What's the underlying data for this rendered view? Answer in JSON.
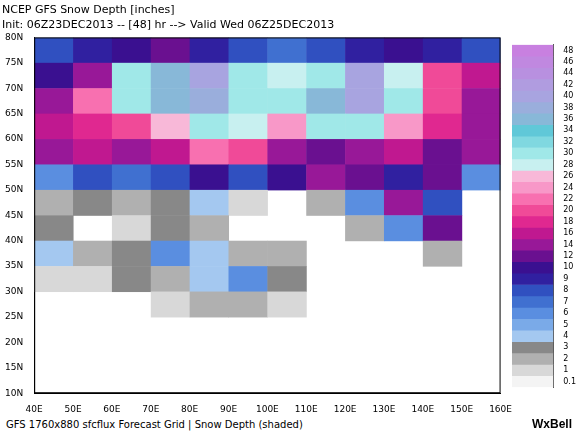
{
  "chart_data": {
    "type": "heatmap",
    "title": "NCEP GFS Snow Depth [inches]",
    "subtitle": "Init: 06Z23DEC2013 -- [48] hr --> Valid Wed 06Z25DEC2013",
    "annotations": [
      "GFS 1760x880 sfcflux Forecast Grid | Snow Depth (shaded)",
      "WxBell"
    ],
    "x": [
      45,
      55,
      65,
      75,
      85,
      95,
      105,
      115,
      125,
      135,
      145,
      155
    ],
    "y": [
      77.5,
      72.5,
      67.5,
      62.5,
      57.5,
      52.5,
      47.5,
      42.5,
      37.5,
      32.5,
      27.5,
      22.5,
      17.5,
      12.5
    ],
    "cells": [
      [
        8,
        9,
        10,
        12,
        9,
        8,
        7,
        8,
        9,
        10,
        9,
        8
      ],
      [
        10,
        14,
        30,
        36,
        40,
        30,
        28,
        30,
        40,
        28,
        20,
        16
      ],
      [
        14,
        22,
        30,
        36,
        38,
        30,
        30,
        36,
        40,
        30,
        20,
        14
      ],
      [
        16,
        18,
        20,
        26,
        30,
        28,
        24,
        30,
        30,
        24,
        18,
        14
      ],
      [
        14,
        16,
        14,
        16,
        22,
        20,
        14,
        12,
        14,
        16,
        12,
        14
      ],
      [
        6,
        8,
        7,
        8,
        10,
        8,
        10,
        14,
        12,
        9,
        12,
        6
      ],
      [
        2,
        3,
        2,
        3,
        4,
        1,
        null,
        2,
        6,
        14,
        8,
        null
      ],
      [
        3,
        null,
        1,
        3,
        2,
        null,
        null,
        null,
        2,
        6,
        12,
        null
      ],
      [
        4,
        2,
        3,
        6,
        4,
        2,
        2,
        null,
        null,
        null,
        2,
        null
      ],
      [
        1,
        1,
        3,
        2,
        4,
        6,
        3,
        null,
        null,
        null,
        null,
        null
      ],
      [
        null,
        null,
        null,
        1,
        2,
        2,
        1,
        null,
        null,
        null,
        null,
        null
      ],
      [
        null,
        null,
        null,
        null,
        null,
        null,
        null,
        null,
        null,
        null,
        null,
        null
      ],
      [
        null,
        null,
        null,
        null,
        null,
        null,
        null,
        null,
        null,
        null,
        null,
        null
      ],
      [
        null,
        null,
        null,
        null,
        null,
        null,
        null,
        null,
        null,
        null,
        null,
        null
      ]
    ],
    "xlim": [
      40,
      160
    ],
    "xticks": [
      {
        "value": 40,
        "label": "40E"
      },
      {
        "value": 50,
        "label": "50E"
      },
      {
        "value": 60,
        "label": "60E"
      },
      {
        "value": 70,
        "label": "70E"
      },
      {
        "value": 80,
        "label": "80E"
      },
      {
        "value": 90,
        "label": "90E"
      },
      {
        "value": 100,
        "label": "100E"
      },
      {
        "value": 110,
        "label": "110E"
      },
      {
        "value": 120,
        "label": "120E"
      },
      {
        "value": 130,
        "label": "130E"
      },
      {
        "value": 140,
        "label": "140E"
      },
      {
        "value": 150,
        "label": "150E"
      },
      {
        "value": 160,
        "label": "160E"
      }
    ],
    "ylim": [
      10,
      80
    ],
    "yticks": [
      {
        "value": 10,
        "label": "10N"
      },
      {
        "value": 15,
        "label": "15N"
      },
      {
        "value": 20,
        "label": "20N"
      },
      {
        "value": 25,
        "label": "25N"
      },
      {
        "value": 30,
        "label": "30N"
      },
      {
        "value": 35,
        "label": "35N"
      },
      {
        "value": 40,
        "label": "40N"
      },
      {
        "value": 45,
        "label": "45N"
      },
      {
        "value": 50,
        "label": "50N"
      },
      {
        "value": 55,
        "label": "55N"
      },
      {
        "value": 60,
        "label": "60N"
      },
      {
        "value": 65,
        "label": "65N"
      },
      {
        "value": 70,
        "label": "70N"
      },
      {
        "value": 75,
        "label": "75N"
      },
      {
        "value": 80,
        "label": "80N"
      }
    ],
    "grid": false,
    "colorbar": {
      "ticks": [
        0.1,
        1,
        2,
        3,
        4,
        5,
        6,
        7,
        8,
        9,
        10,
        12,
        14,
        16,
        18,
        20,
        22,
        24,
        26,
        28,
        30,
        32,
        34,
        36,
        38,
        40,
        42,
        44,
        46,
        48
      ],
      "colors": [
        "#f4f4f4",
        "#d8d8d8",
        "#b0b0b0",
        "#888888",
        "#a4c8f0",
        "#7aaae8",
        "#5a8ee0",
        "#4070d0",
        "#3050c0",
        "#3020a0",
        "#3a1090",
        "#6a1090",
        "#981898",
        "#c01890",
        "#e02890",
        "#f04a98",
        "#f870b0",
        "#f898c8",
        "#f8b8d8",
        "#c8f0f0",
        "#a0e8e8",
        "#80d8e0",
        "#60c8d8",
        "#88b8d8",
        "#9aaedc",
        "#a8a4e0",
        "#b09ce0",
        "#b890e0",
        "#c088e0",
        "#c880e0"
      ]
    }
  }
}
